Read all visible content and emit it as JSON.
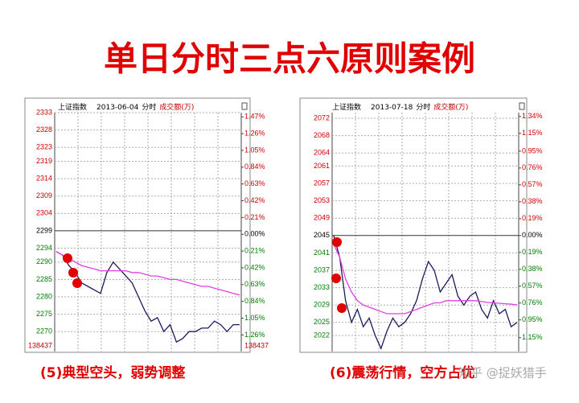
{
  "title": "单日分时三点六原则案例",
  "watermark": "知乎 @捉妖猎手",
  "chart_data": [
    {
      "type": "line",
      "index": "上证指数",
      "date": "2013-06-04",
      "mode": "分时",
      "indicator": "成交额(万)",
      "caption": "(5)典型空头，弱势调整",
      "volume_label": "138437",
      "ylim": [
        2265,
        2335
      ],
      "y2lim": [
        -1.4354,
        1.6094
      ],
      "yticks": [
        2333,
        2328,
        2323,
        2319,
        2314,
        2309,
        2304,
        2299,
        2294,
        2290,
        2285,
        2280,
        2275,
        2270
      ],
      "y2ticks": [
        {
          "value": 1.47,
          "label": "1.47%"
        },
        {
          "value": 1.26,
          "label": "1.26%"
        },
        {
          "value": 1.05,
          "label": "1.05%"
        },
        {
          "value": 0.84,
          "label": "0.84%"
        },
        {
          "value": 0.63,
          "label": "0.63%"
        },
        {
          "value": 0.42,
          "label": "0.42%"
        },
        {
          "value": 0.21,
          "label": "0.21%"
        },
        {
          "value": 0,
          "label": "0.00%"
        },
        {
          "value": -0.21,
          "label": "0.21%"
        },
        {
          "value": -0.42,
          "label": "0.42%"
        },
        {
          "value": -0.63,
          "label": "0.63%"
        },
        {
          "value": -0.84,
          "label": "0.84%"
        },
        {
          "value": -1.05,
          "label": "1.05%"
        },
        {
          "value": -1.26,
          "label": "1.26%"
        }
      ],
      "grid": true,
      "series": [
        {
          "color": "#1a1a5e",
          "values": [
            2293,
            2292,
            2289,
            2287,
            2284,
            2283,
            2282,
            2281,
            2287,
            2290,
            2288,
            2286,
            2284,
            2280,
            2276,
            2273,
            2274,
            2270,
            2272,
            2267,
            2268,
            2270,
            2270,
            2271,
            2271,
            2273,
            2272,
            2270,
            2272,
            2272
          ]
        },
        {
          "color": "#e040e0",
          "values": [
            2293,
            2292,
            2291,
            2290,
            2289,
            2288.5,
            2288,
            2287.5,
            2287.5,
            2287.5,
            2287.5,
            2287.5,
            2287,
            2287,
            2286.5,
            2286,
            2286,
            2285.5,
            2285,
            2285,
            2284.5,
            2284,
            2283.5,
            2283,
            2283,
            2282.5,
            2282,
            2281.5,
            2281,
            2280.5
          ]
        }
      ]
    },
    {
      "type": "line",
      "index": "上证指数",
      "date": "2013-07-18",
      "mode": "分时",
      "indicator": "成交额(万)",
      "caption": "(6)震荡行情，空方占优",
      "ylim": [
        2020,
        2074
      ],
      "y2lim": [
        -1.2225,
        1.4181
      ],
      "yticks": [
        2072,
        2068,
        2064,
        2061,
        2057,
        2053,
        2049,
        2045,
        2041,
        2037,
        2033,
        2029,
        2025,
        2022
      ],
      "y2ticks": [
        {
          "value": 1.34,
          "label": "1.34%"
        },
        {
          "value": 1.15,
          "label": "1.15%"
        },
        {
          "value": 0.95,
          "label": "0.95%"
        },
        {
          "value": 0.76,
          "label": "0.76%"
        },
        {
          "value": 0.57,
          "label": "0.57%"
        },
        {
          "value": 0.38,
          "label": "0.38%"
        },
        {
          "value": 0.19,
          "label": "0.19%"
        },
        {
          "value": 0,
          "label": "0.00%"
        },
        {
          "value": -0.19,
          "label": "0.19%"
        },
        {
          "value": -0.38,
          "label": "0.38%"
        },
        {
          "value": -0.57,
          "label": "0.57%"
        },
        {
          "value": -0.76,
          "label": "0.76%"
        },
        {
          "value": -0.95,
          "label": "0.95%"
        },
        {
          "value": -1.15,
          "label": "1.15%"
        }
      ],
      "grid": true,
      "series": [
        {
          "color": "#1a1a5e",
          "values": [
            2045,
            2040,
            2030,
            2025,
            2028,
            2024,
            2026,
            2022,
            2019,
            2023,
            2026,
            2024,
            2025,
            2027,
            2030,
            2035,
            2039,
            2037,
            2032,
            2034,
            2036,
            2031,
            2029,
            2031,
            2032,
            2028,
            2026,
            2030,
            2027,
            2028,
            2024,
            2025
          ]
        },
        {
          "color": "#e040e0",
          "values": [
            2043,
            2040,
            2035,
            2032,
            2030,
            2029,
            2028.5,
            2028,
            2027.5,
            2027,
            2027,
            2027,
            2027,
            2027.5,
            2028,
            2028.5,
            2029,
            2029.5,
            2029.5,
            2030,
            2030,
            2030,
            2030,
            2030,
            2030,
            2029.8,
            2029.6,
            2029.5,
            2029.4,
            2029.3,
            2029.2,
            2029
          ]
        }
      ]
    }
  ]
}
